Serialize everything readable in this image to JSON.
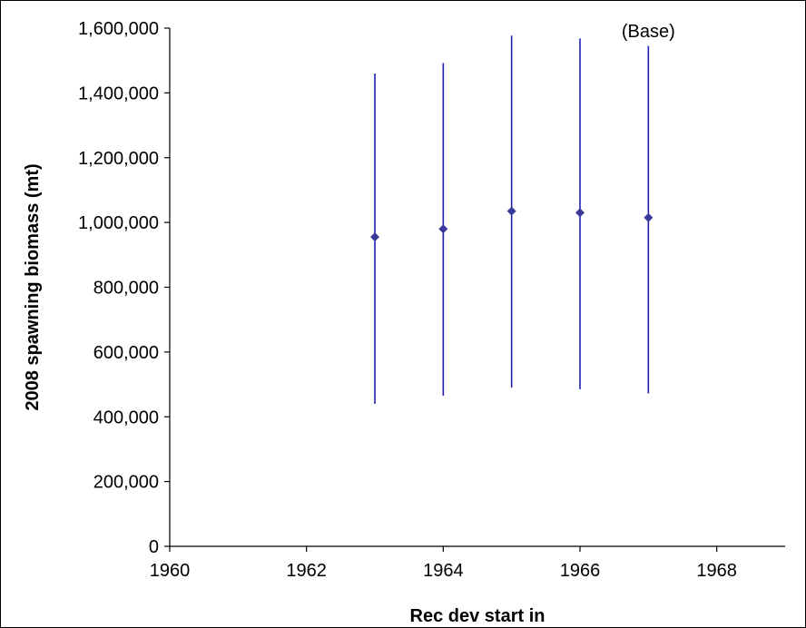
{
  "chart_data": {
    "type": "scatter",
    "title": "",
    "xlabel": "Rec dev start in",
    "ylabel": "2008 spawning biomass (mt)",
    "xlim": [
      1960,
      1969
    ],
    "ylim": [
      0,
      1600000
    ],
    "xticks": [
      1960,
      1962,
      1964,
      1966,
      1968
    ],
    "xtick_labels": [
      "1960",
      "1962",
      "1964",
      "1966",
      "1968"
    ],
    "yticks": [
      0,
      200000,
      400000,
      600000,
      800000,
      1000000,
      1200000,
      1400000,
      1600000
    ],
    "ytick_labels": [
      "0",
      "200,000",
      "400,000",
      "600,000",
      "800,000",
      "1,000,000",
      "1,200,000",
      "1,400,000",
      "1,600,000"
    ],
    "grid": false,
    "legend": "none",
    "series": [
      {
        "x": [
          1963,
          1964,
          1965,
          1966,
          1967
        ],
        "y": [
          955000,
          980000,
          1035000,
          1030000,
          1015000
        ],
        "lower": [
          440000,
          465000,
          490000,
          485000,
          472000
        ],
        "upper": [
          1460000,
          1492000,
          1577000,
          1568000,
          1545000
        ],
        "marker": "diamond",
        "color": "#3a3a9a",
        "errorbar_color": "#2020b0"
      }
    ],
    "annotations": [
      {
        "text": "(Base)",
        "x": 1967,
        "y": 1600000
      }
    ]
  }
}
